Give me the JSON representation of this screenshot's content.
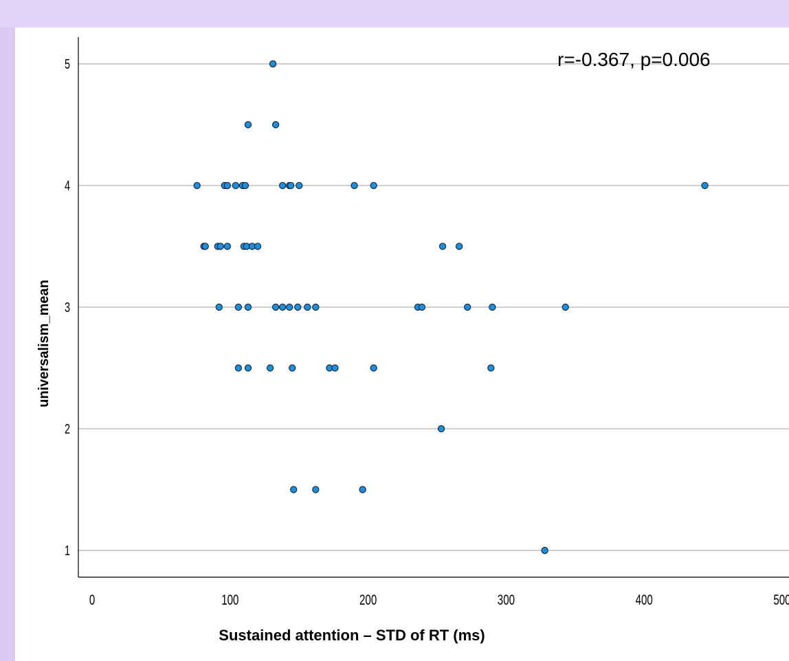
{
  "chart_data": {
    "type": "scatter",
    "annotation": "r=-0.367, p=0.006",
    "xlabel": "Sustained attention – STD of RT (ms)",
    "ylabel": "universalism_mean",
    "xlim": [
      -10,
      505
    ],
    "ylim": [
      0.78,
      5.22
    ],
    "x_ticks": [
      0,
      100,
      200,
      300,
      400,
      500
    ],
    "y_ticks": [
      1,
      2,
      3,
      4,
      5
    ],
    "grid": "horizontal",
    "marker_color": "#1f8fdc",
    "points": [
      {
        "x": 131,
        "y": 5
      },
      {
        "x": 113,
        "y": 4.5
      },
      {
        "x": 133,
        "y": 4.5
      },
      {
        "x": 76,
        "y": 4
      },
      {
        "x": 96,
        "y": 4
      },
      {
        "x": 98,
        "y": 4
      },
      {
        "x": 104,
        "y": 4
      },
      {
        "x": 109,
        "y": 4
      },
      {
        "x": 111,
        "y": 4
      },
      {
        "x": 138,
        "y": 4
      },
      {
        "x": 143,
        "y": 4
      },
      {
        "x": 144,
        "y": 4
      },
      {
        "x": 150,
        "y": 4
      },
      {
        "x": 190,
        "y": 4
      },
      {
        "x": 204,
        "y": 4
      },
      {
        "x": 444,
        "y": 4
      },
      {
        "x": 81,
        "y": 3.5
      },
      {
        "x": 82,
        "y": 3.5
      },
      {
        "x": 91,
        "y": 3.5
      },
      {
        "x": 93,
        "y": 3.5
      },
      {
        "x": 98,
        "y": 3.5
      },
      {
        "x": 110,
        "y": 3.5
      },
      {
        "x": 112,
        "y": 3.5
      },
      {
        "x": 116,
        "y": 3.5
      },
      {
        "x": 120,
        "y": 3.5
      },
      {
        "x": 254,
        "y": 3.5
      },
      {
        "x": 266,
        "y": 3.5
      },
      {
        "x": 92,
        "y": 3
      },
      {
        "x": 106,
        "y": 3
      },
      {
        "x": 113,
        "y": 3
      },
      {
        "x": 133,
        "y": 3
      },
      {
        "x": 138,
        "y": 3
      },
      {
        "x": 143,
        "y": 3
      },
      {
        "x": 149,
        "y": 3
      },
      {
        "x": 156,
        "y": 3
      },
      {
        "x": 162,
        "y": 3
      },
      {
        "x": 236,
        "y": 3
      },
      {
        "x": 239,
        "y": 3
      },
      {
        "x": 272,
        "y": 3
      },
      {
        "x": 290,
        "y": 3
      },
      {
        "x": 343,
        "y": 3
      },
      {
        "x": 106,
        "y": 2.5
      },
      {
        "x": 113,
        "y": 2.5
      },
      {
        "x": 129,
        "y": 2.5
      },
      {
        "x": 145,
        "y": 2.5
      },
      {
        "x": 172,
        "y": 2.5
      },
      {
        "x": 176,
        "y": 2.5
      },
      {
        "x": 204,
        "y": 2.5
      },
      {
        "x": 289,
        "y": 2.5
      },
      {
        "x": 253,
        "y": 2
      },
      {
        "x": 146,
        "y": 1.5
      },
      {
        "x": 162,
        "y": 1.5
      },
      {
        "x": 196,
        "y": 1.5
      },
      {
        "x": 328,
        "y": 1
      }
    ]
  }
}
